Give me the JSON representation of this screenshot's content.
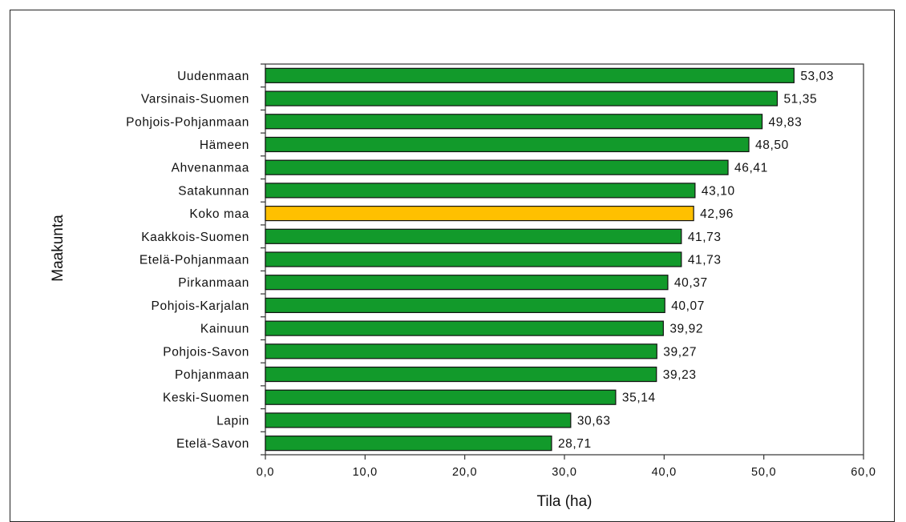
{
  "chart_data": {
    "type": "bar",
    "orientation": "horizontal",
    "categories": [
      "Uudenmaan",
      "Varsinais-Suomen",
      "Pohjois-Pohjanmaan",
      "Hämeen",
      "Ahvenanmaa",
      "Satakunnan",
      "Koko maa",
      "Kaakkois-Suomen",
      "Etelä-Pohjanmaan",
      "Pirkanmaan",
      "Pohjois-Karjalan",
      "Kainuun",
      "Pohjois-Savon",
      "Pohjanmaan",
      "Keski-Suomen",
      "Lapin",
      "Etelä-Savon"
    ],
    "values": [
      53.03,
      51.35,
      49.83,
      48.5,
      46.41,
      43.1,
      42.96,
      41.73,
      41.73,
      40.37,
      40.07,
      39.92,
      39.27,
      39.23,
      35.14,
      30.63,
      28.71
    ],
    "value_labels": [
      "53,03",
      "51,35",
      "49,83",
      "48,50",
      "46,41",
      "43,10",
      "42,96",
      "41,73",
      "41,73",
      "40,37",
      "40,07",
      "39,92",
      "39,27",
      "39,23",
      "35,14",
      "30,63",
      "28,71"
    ],
    "highlight_category": "Koko maa",
    "colors": {
      "bar": "#129a2b",
      "highlight": "#ffc000",
      "outline": "#111111"
    },
    "xlabel": "Tila (ha)",
    "ylabel": "Maakunta",
    "xlim": [
      0,
      60
    ],
    "xticks": [
      0,
      10,
      20,
      30,
      40,
      50,
      60
    ],
    "xtick_labels": [
      "0,0",
      "10,0",
      "20,0",
      "30,0",
      "40,0",
      "50,0",
      "60,0"
    ],
    "grid": false,
    "legend": "none"
  }
}
